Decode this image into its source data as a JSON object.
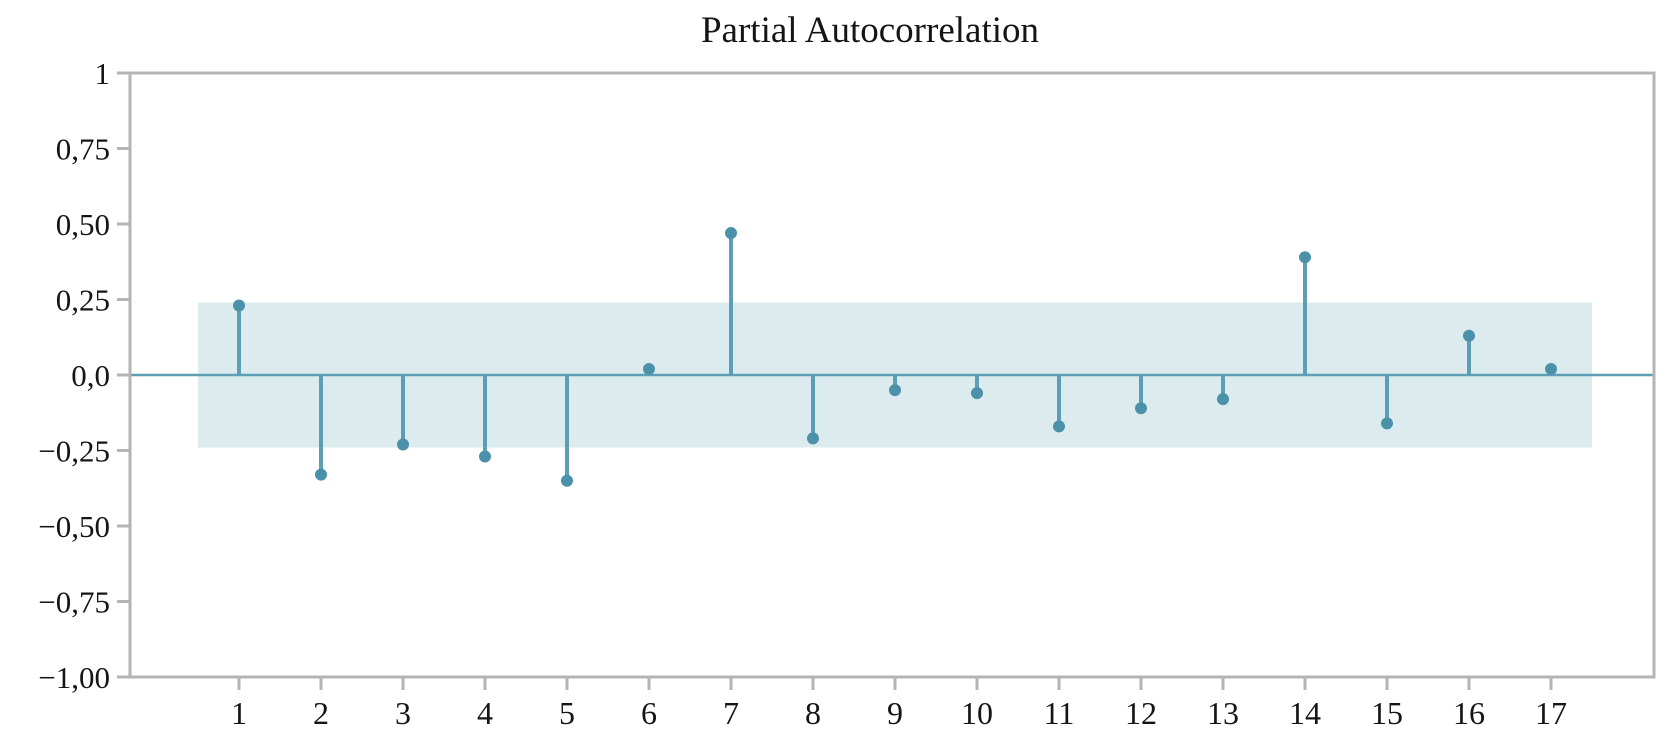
{
  "colors": {
    "stem": "#5e9eb5",
    "marker": "#4b91a9",
    "zero_line": "#5e9eb5",
    "band": "#dcebee",
    "frame": "#b4b4b4",
    "tick": "#b4b4b4",
    "text": "#151515",
    "background": "#ffffff"
  },
  "chart_data": {
    "type": "stem",
    "title": "Partial Autocorrelation",
    "xlabel": "",
    "ylabel": "",
    "x": [
      1,
      2,
      3,
      4,
      5,
      6,
      7,
      8,
      9,
      10,
      11,
      12,
      13,
      14,
      15,
      16,
      17
    ],
    "values": [
      0.23,
      -0.33,
      -0.23,
      -0.27,
      -0.35,
      0.02,
      0.47,
      -0.21,
      -0.05,
      -0.06,
      -0.17,
      -0.11,
      -0.08,
      0.39,
      -0.16,
      0.13,
      0.02
    ],
    "confidence_band": {
      "lower": -0.24,
      "upper": 0.24,
      "extends_half_lag_beyond_data": true
    },
    "ylim": [
      -1,
      1
    ],
    "grid": false,
    "legend": "none",
    "decimal_separator": ",",
    "y_ticks": [
      {
        "value": 1.0,
        "label": "1"
      },
      {
        "value": 0.75,
        "label": "0,75"
      },
      {
        "value": 0.5,
        "label": "0,50"
      },
      {
        "value": 0.25,
        "label": "0,25"
      },
      {
        "value": 0.0,
        "label": "0,0"
      },
      {
        "value": -0.25,
        "label": "−0,25"
      },
      {
        "value": -0.5,
        "label": "−0,50"
      },
      {
        "value": -0.75,
        "label": "−0,75"
      },
      {
        "value": -1.0,
        "label": "−1,00"
      }
    ],
    "x_tick_labels": [
      "1",
      "2",
      "3",
      "4",
      "5",
      "6",
      "7",
      "8",
      "9",
      "10",
      "11",
      "12",
      "13",
      "14",
      "15",
      "16",
      "17"
    ]
  }
}
